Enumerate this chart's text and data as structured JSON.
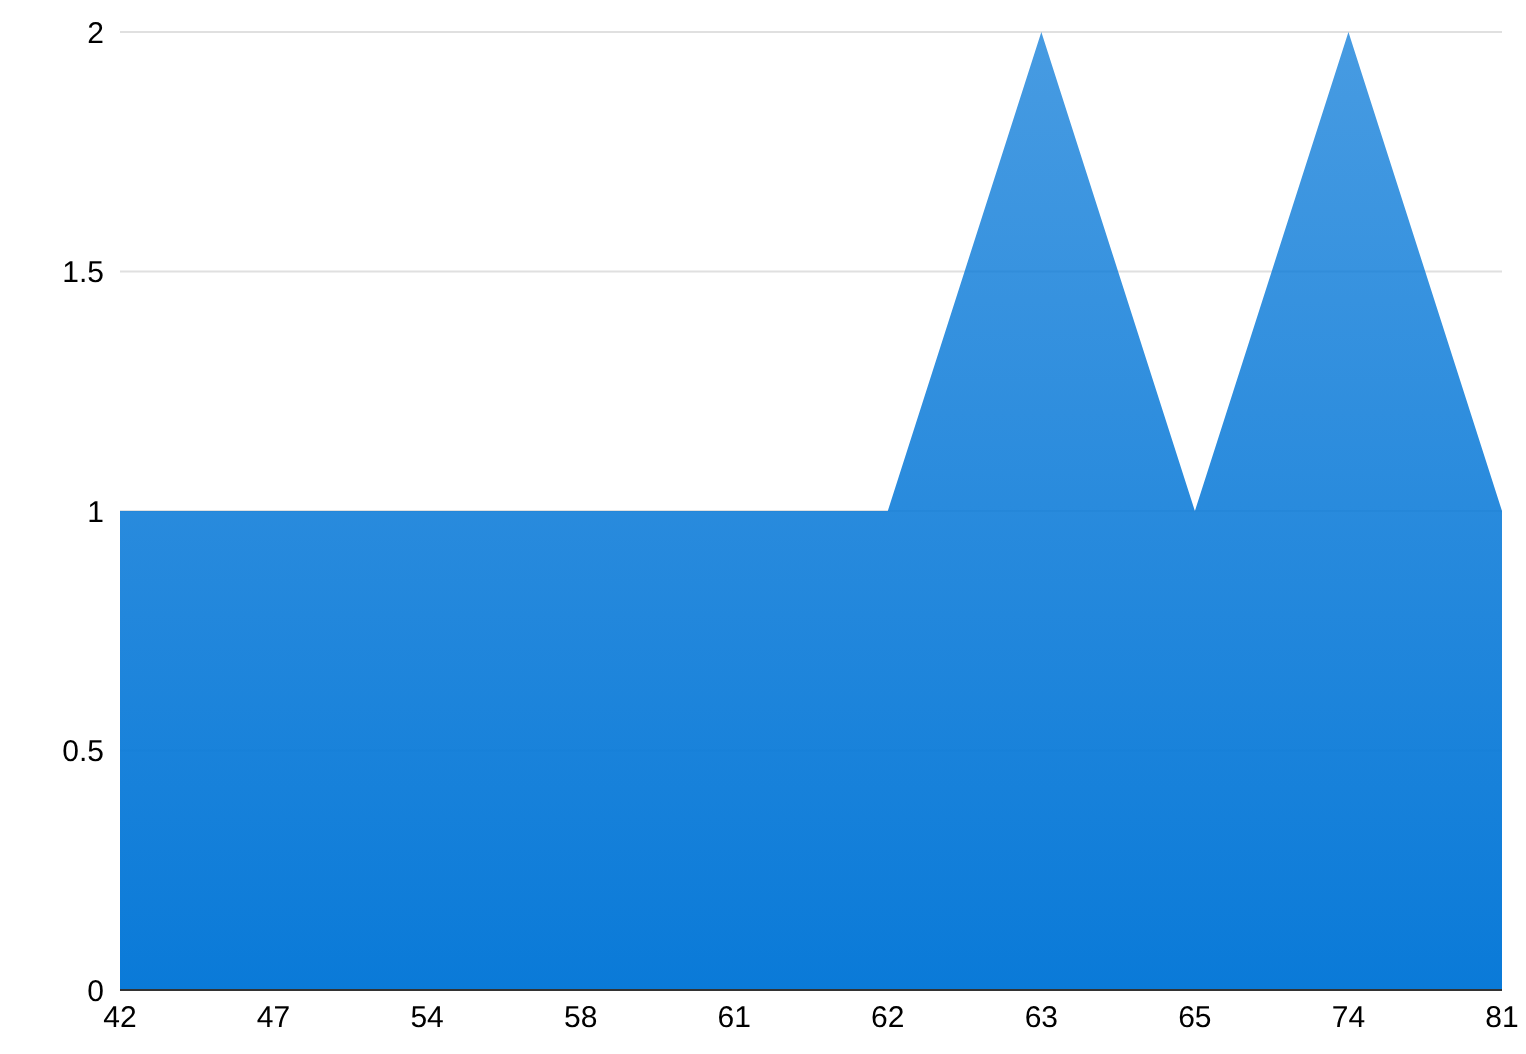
{
  "chart_data": {
    "type": "area",
    "categories": [
      "42",
      "47",
      "54",
      "58",
      "61",
      "62",
      "63",
      "65",
      "74",
      "81"
    ],
    "values": [
      1,
      1,
      1,
      1,
      1,
      1,
      2,
      1,
      2,
      1
    ],
    "color": "#0a7ad8",
    "ylim": [
      0,
      2
    ],
    "yticks": [
      0,
      0.5,
      1,
      1.5,
      2
    ],
    "grid": "y"
  }
}
